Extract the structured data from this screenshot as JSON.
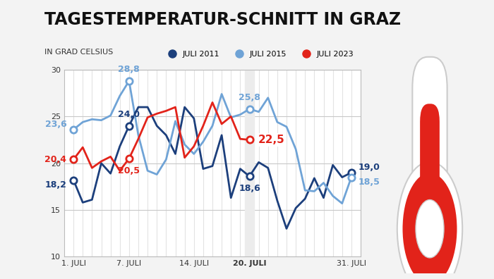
{
  "chart_data": {
    "type": "line",
    "title": "TAGESTEMPERATUR-SCHNITT IN GRAZ",
    "subtitle": "IN GRAD CELSIUS",
    "x": [
      1,
      2,
      3,
      4,
      5,
      6,
      7,
      8,
      9,
      10,
      11,
      12,
      13,
      14,
      15,
      16,
      17,
      18,
      19,
      20,
      21,
      22,
      23,
      24,
      25,
      26,
      27,
      28,
      29,
      30,
      31
    ],
    "series": [
      {
        "name": "JULI 2011",
        "color": "#1c3f7c",
        "marker": "o",
        "values": [
          18.2,
          15.8,
          16.1,
          20.0,
          18.9,
          21.8,
          24.0,
          26.0,
          26.0,
          24.0,
          23.0,
          21.0,
          26.0,
          24.8,
          19.4,
          19.7,
          23.0,
          16.3,
          19.4,
          18.6,
          20.1,
          19.5,
          16.0,
          13.0,
          15.2,
          16.2,
          18.4,
          16.3,
          19.8,
          18.5,
          19.0
        ],
        "value_labels": [
          "18,2",
          null,
          null,
          null,
          null,
          null,
          "24,0",
          null,
          null,
          null,
          null,
          null,
          null,
          null,
          null,
          null,
          null,
          null,
          null,
          "18,6",
          null,
          null,
          null,
          null,
          null,
          null,
          null,
          null,
          null,
          null,
          "19,0"
        ]
      },
      {
        "name": "JULI 2015",
        "color": "#6fa3d6",
        "marker": "o",
        "values": [
          23.6,
          24.4,
          24.7,
          24.6,
          25.1,
          27.2,
          28.8,
          23.0,
          19.2,
          18.8,
          20.4,
          24.5,
          22.0,
          21.0,
          22.3,
          24.0,
          27.4,
          24.9,
          25.2,
          25.8,
          25.5,
          27.0,
          24.4,
          23.9,
          21.5,
          17.1,
          17.0,
          17.9,
          16.5,
          15.7,
          18.5
        ],
        "value_labels": [
          "23,6",
          null,
          null,
          null,
          null,
          null,
          "28,8",
          null,
          null,
          null,
          null,
          null,
          null,
          null,
          null,
          null,
          null,
          null,
          null,
          "25,8",
          null,
          null,
          null,
          null,
          null,
          null,
          null,
          null,
          null,
          null,
          "18,5"
        ]
      },
      {
        "name": "JULI 2023",
        "color": "#e2231a",
        "marker": "o",
        "values": [
          20.4,
          21.7,
          19.5,
          20.2,
          20.7,
          19.2,
          20.5,
          22.6,
          24.9,
          25.3,
          25.6,
          26.0,
          20.6,
          21.8,
          24.0,
          26.5,
          24.2,
          25.0,
          22.6,
          22.5,
          null,
          null,
          null,
          null,
          null,
          null,
          null,
          null,
          null,
          null,
          null
        ],
        "value_labels": [
          "20,4",
          null,
          null,
          null,
          null,
          null,
          "20,5",
          null,
          null,
          null,
          null,
          null,
          null,
          null,
          null,
          null,
          null,
          null,
          null,
          "22,5",
          null,
          null,
          null,
          null,
          null,
          null,
          null,
          null,
          null,
          null,
          null
        ]
      }
    ],
    "xlim": [
      0,
      32
    ],
    "xticks": [
      {
        "value": 1,
        "label": "1. JULI"
      },
      {
        "value": 7,
        "label": "7. JULI"
      },
      {
        "value": 14,
        "label": "14. JULI"
      },
      {
        "value": 20,
        "label": "20. JULI"
      },
      {
        "value": 31,
        "label": "31. JULI"
      }
    ],
    "ylim": [
      10,
      30
    ],
    "yticks": [
      10,
      15,
      20,
      25,
      30
    ],
    "grid": true,
    "legend": "upper right"
  }
}
